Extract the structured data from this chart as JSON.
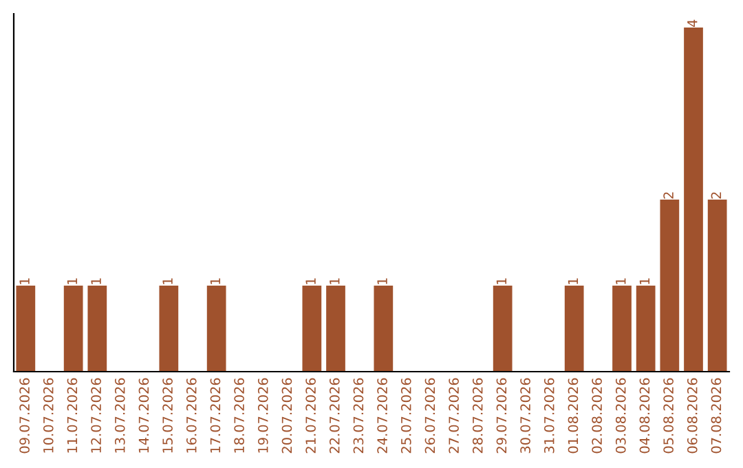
{
  "chart_data": {
    "type": "bar",
    "categories": [
      "09.07.2026",
      "10.07.2026",
      "11.07.2026",
      "12.07.2026",
      "13.07.2026",
      "14.07.2026",
      "15.07.2026",
      "16.07.2026",
      "17.07.2026",
      "18.07.2026",
      "19.07.2026",
      "20.07.2026",
      "21.07.2026",
      "22.07.2026",
      "23.07.2026",
      "24.07.2026",
      "25.07.2026",
      "26.07.2026",
      "27.07.2026",
      "28.07.2026",
      "29.07.2026",
      "30.07.2026",
      "31.07.2026",
      "01.08.2026",
      "02.08.2026",
      "03.08.2026",
      "04.08.2026",
      "05.08.2026",
      "06.08.2026",
      "07.08.2026"
    ],
    "values": [
      1,
      0,
      1,
      1,
      0,
      0,
      1,
      0,
      1,
      0,
      0,
      0,
      1,
      1,
      0,
      1,
      0,
      0,
      0,
      0,
      1,
      0,
      0,
      1,
      0,
      1,
      1,
      2,
      4,
      2
    ],
    "value_labels": [
      "1",
      null,
      "1",
      "1",
      null,
      null,
      "1",
      null,
      "1",
      null,
      null,
      null,
      "1",
      "1",
      null,
      "1",
      null,
      null,
      null,
      null,
      "1",
      null,
      null,
      "1",
      null,
      "1",
      "1",
      "2",
      "4",
      "2"
    ],
    "color": "#a0522d",
    "tick_labels": "x",
    "grid": false,
    "legend": false
  }
}
